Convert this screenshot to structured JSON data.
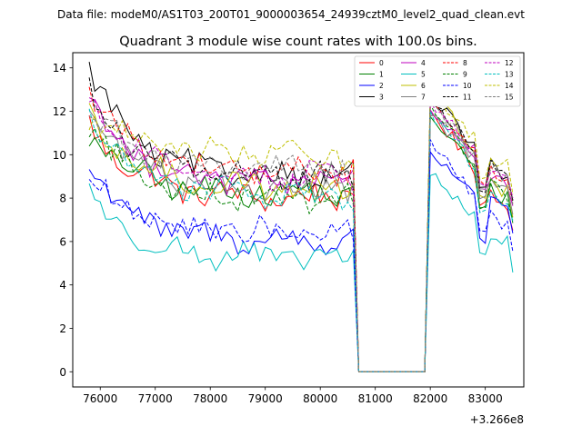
{
  "chart_data": {
    "type": "line",
    "suptitle": "Data file: modeM0/AS1T03_200T01_9000003654_24939cztM0_level2_quad_clean.evt",
    "title": "Quadrant 3 module wise count rates with 100.0s bins.",
    "xlabel": "",
    "ylabel": "",
    "offset_text": "+3.266e8",
    "x_offset": 326600000,
    "xlim": [
      75500,
      83700
    ],
    "ylim": [
      -0.7,
      14.7
    ],
    "x_ticks": [
      76000,
      77000,
      78000,
      79000,
      80000,
      81000,
      82000,
      83000
    ],
    "y_ticks": [
      0,
      2,
      4,
      6,
      8,
      10,
      12,
      14
    ],
    "x_tick_labels": [
      "76000",
      "77000",
      "78000",
      "79000",
      "80000",
      "81000",
      "82000",
      "83000"
    ],
    "y_tick_labels": [
      "0",
      "2",
      "4",
      "6",
      "8",
      "10",
      "12",
      "14"
    ],
    "legend_placement": "top-right",
    "legend_columns": 4,
    "segments": [
      {
        "start": 75800,
        "count": 50,
        "step": 100
      },
      {
        "start": 80800,
        "count": 12,
        "step": 100
      },
      {
        "start": 82000,
        "count": 16,
        "step": 100
      }
    ],
    "series": [
      {
        "name": "0",
        "color": "#ff0000",
        "dash": "solid",
        "start": 11.5,
        "plateau": 8.0,
        "peak": 12.0,
        "dip": 7.8,
        "end": 6.5
      },
      {
        "name": "1",
        "color": "#008000",
        "dash": "solid",
        "start": 11.0,
        "plateau": 8.2,
        "peak": 11.8,
        "dip": 7.5,
        "end": 6.8
      },
      {
        "name": "2",
        "color": "#0000ff",
        "dash": "solid",
        "start": 9.6,
        "plateau": 6.0,
        "peak": 10.2,
        "dip": 6.0,
        "end": 6.3
      },
      {
        "name": "3",
        "color": "#000000",
        "dash": "solid",
        "start": 14.0,
        "plateau": 9.0,
        "peak": 12.7,
        "dip": 8.5,
        "end": 7.8
      },
      {
        "name": "4",
        "color": "#bf00bf",
        "dash": "solid",
        "start": 12.6,
        "plateau": 8.7,
        "peak": 12.2,
        "dip": 8.3,
        "end": 7.5
      },
      {
        "name": "5",
        "color": "#00bfbf",
        "dash": "solid",
        "start": 8.3,
        "plateau": 5.2,
        "peak": 9.2,
        "dip": 5.5,
        "end": 4.7
      },
      {
        "name": "6",
        "color": "#bfbf00",
        "dash": "solid",
        "start": 11.7,
        "plateau": 8.5,
        "peak": 13.0,
        "dip": 8.0,
        "end": 7.2
      },
      {
        "name": "7",
        "color": "#808080",
        "dash": "solid",
        "start": 12.3,
        "plateau": 8.4,
        "peak": 12.0,
        "dip": 8.0,
        "end": 7.3
      },
      {
        "name": "8",
        "color": "#ff0000",
        "dash": "dashed",
        "start": 13.1,
        "plateau": 9.2,
        "peak": 12.5,
        "dip": 8.7,
        "end": 7.8
      },
      {
        "name": "9",
        "color": "#008000",
        "dash": "dashed",
        "start": 11.4,
        "plateau": 8.0,
        "peak": 12.1,
        "dip": 7.6,
        "end": 7.0
      },
      {
        "name": "10",
        "color": "#0000ff",
        "dash": "dashed",
        "start": 8.8,
        "plateau": 6.4,
        "peak": 10.5,
        "dip": 6.4,
        "end": 5.5
      },
      {
        "name": "11",
        "color": "#000000",
        "dash": "dashed",
        "start": 12.9,
        "plateau": 9.0,
        "peak": 12.6,
        "dip": 8.4,
        "end": 7.8
      },
      {
        "name": "12",
        "color": "#bf00bf",
        "dash": "dashed",
        "start": 12.7,
        "plateau": 9.0,
        "peak": 12.4,
        "dip": 8.6,
        "end": 7.9
      },
      {
        "name": "13",
        "color": "#00bfbf",
        "dash": "dashed",
        "start": 12.0,
        "plateau": 8.1,
        "peak": 11.9,
        "dip": 7.4,
        "end": 6.8
      },
      {
        "name": "14",
        "color": "#bfbf00",
        "dash": "dashed",
        "start": 11.9,
        "plateau": 10.0,
        "peak": 13.1,
        "dip": 8.8,
        "end": 8.3
      },
      {
        "name": "15",
        "color": "#808080",
        "dash": "dashed",
        "start": 12.1,
        "plateau": 9.3,
        "peak": 12.3,
        "dip": 8.5,
        "end": 7.8
      }
    ]
  }
}
